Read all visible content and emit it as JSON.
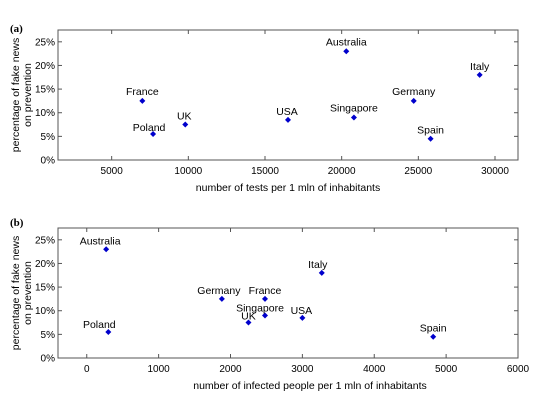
{
  "chart_data": [
    {
      "type": "scatter",
      "panel_label": "(a)",
      "xlabel": "number of tests per 1 mln of inhabitants",
      "ylabel_lines": [
        "percentage of fake news",
        "on prevention"
      ],
      "xlim": [
        1500,
        31500
      ],
      "ylim": [
        0,
        27.5
      ],
      "xticks": [
        5000,
        10000,
        15000,
        20000,
        25000,
        30000
      ],
      "yticks": [
        0,
        5,
        10,
        15,
        20,
        25
      ],
      "yticks_labels": [
        "0%",
        "5%",
        "10%",
        "15%",
        "20%",
        "25%"
      ],
      "grid": false,
      "marker_color": "#0000cc",
      "points": [
        {
          "label": "Australia",
          "x": 20300,
          "y": 23.0
        },
        {
          "label": "Italy",
          "x": 29000,
          "y": 18.0
        },
        {
          "label": "France",
          "x": 7000,
          "y": 12.5
        },
        {
          "label": "Germany",
          "x": 24700,
          "y": 12.5
        },
        {
          "label": "Singapore",
          "x": 20800,
          "y": 9.0
        },
        {
          "label": "USA",
          "x": 16500,
          "y": 8.5
        },
        {
          "label": "UK",
          "x": 9800,
          "y": 7.5
        },
        {
          "label": "Poland",
          "x": 7700,
          "y": 5.5
        },
        {
          "label": "Spain",
          "x": 25800,
          "y": 4.5
        }
      ]
    },
    {
      "type": "scatter",
      "panel_label": "(b)",
      "xlabel": "number of infected people per 1 mln of inhabitants",
      "ylabel_lines": [
        "percentage of fake news",
        "on prevention"
      ],
      "xlim": [
        -400,
        6000
      ],
      "ylim": [
        0,
        27.5
      ],
      "xticks": [
        0,
        1000,
        2000,
        3000,
        4000,
        5000,
        6000
      ],
      "yticks": [
        0,
        5,
        10,
        15,
        20,
        25
      ],
      "yticks_labels": [
        "0%",
        "5%",
        "10%",
        "15%",
        "20%",
        "25%"
      ],
      "grid": false,
      "marker_color": "#0000cc",
      "points": [
        {
          "label": "Australia",
          "x": 270,
          "y": 23.0
        },
        {
          "label": "Italy",
          "x": 3270,
          "y": 18.0
        },
        {
          "label": "Germany",
          "x": 1880,
          "y": 12.5
        },
        {
          "label": "France",
          "x": 2480,
          "y": 12.5
        },
        {
          "label": "Singapore",
          "x": 2480,
          "y": 9.0
        },
        {
          "label": "USA",
          "x": 3000,
          "y": 8.5
        },
        {
          "label": "UK",
          "x": 2250,
          "y": 7.5
        },
        {
          "label": "Poland",
          "x": 300,
          "y": 5.5
        },
        {
          "label": "Spain",
          "x": 4820,
          "y": 4.5
        }
      ]
    }
  ]
}
